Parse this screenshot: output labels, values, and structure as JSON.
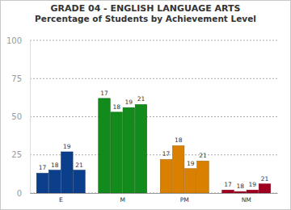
{
  "chart_data": {
    "type": "bar",
    "title": "GRADE 04 - ENGLISH LANGUAGE ARTS",
    "subtitle": "Percentage of Students by Achievement Level",
    "categories": [
      "E",
      "M",
      "PM",
      "NM"
    ],
    "series": [
      {
        "name": "17",
        "colors": [
          "#0b3f8c",
          "#128a1c",
          "#d98000",
          "#a0001f"
        ],
        "values": [
          13,
          62,
          22,
          2
        ]
      },
      {
        "name": "18",
        "colors": [
          "#0b3f8c",
          "#128a1c",
          "#d98000",
          "#a0001f"
        ],
        "values": [
          15,
          53,
          31,
          1
        ]
      },
      {
        "name": "19",
        "colors": [
          "#0b3f8c",
          "#128a1c",
          "#d98000",
          "#a0001f"
        ],
        "values": [
          27,
          56,
          16,
          2
        ]
      },
      {
        "name": "21",
        "colors": [
          "#0b3f8c",
          "#128a1c",
          "#d98000",
          "#a0001f"
        ],
        "values": [
          15,
          58,
          21,
          6
        ]
      }
    ],
    "ylim": [
      0,
      100
    ],
    "yticks": [
      0,
      25,
      50,
      75,
      100
    ],
    "grid": true
  }
}
